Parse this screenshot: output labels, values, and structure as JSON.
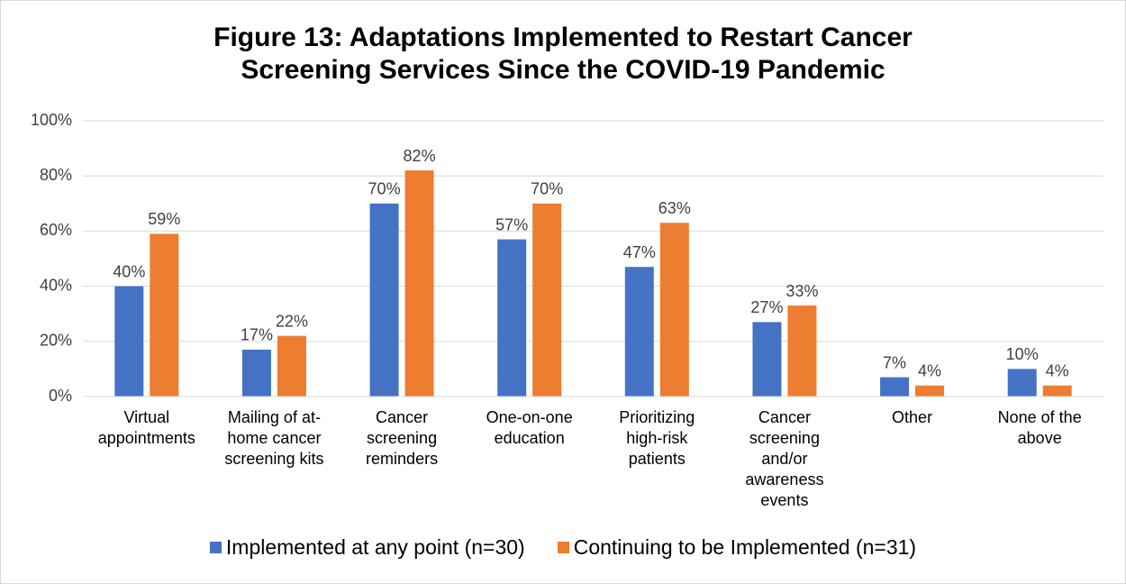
{
  "chart_data": {
    "type": "bar",
    "title": "Figure 13:  Adaptations Implemented to Restart Cancer Screening Services Since the COVID-19 Pandemic",
    "categories": [
      "Virtual appointments",
      "Mailing of at-home cancer screening kits",
      "Cancer screening reminders",
      "One-on-one education",
      "Prioritizing high-risk patients",
      "Cancer screening and/or awareness events",
      "Other",
      "None of the above"
    ],
    "series": [
      {
        "name": "Implemented at any point (n=30)",
        "color": "#4472c4",
        "values": [
          40,
          17,
          70,
          57,
          47,
          27,
          7,
          10
        ],
        "value_labels": [
          "40%",
          "17%",
          "70%",
          "57%",
          "47%",
          "27%",
          "7%",
          "10%"
        ]
      },
      {
        "name": "Continuing to be Implemented (n=31)",
        "color": "#ed7d31",
        "values": [
          59,
          22,
          82,
          70,
          63,
          33,
          4,
          4
        ],
        "value_labels": [
          "59%",
          "22%",
          "82%",
          "70%",
          "63%",
          "33%",
          "4%",
          "4%"
        ]
      }
    ],
    "ylim": [
      0,
      100
    ],
    "yticks": [
      {
        "value": 0,
        "label": "0%"
      },
      {
        "value": 20,
        "label": "20%"
      },
      {
        "value": 40,
        "label": "40%"
      },
      {
        "value": 60,
        "label": "60%"
      },
      {
        "value": 80,
        "label": "80%"
      },
      {
        "value": 100,
        "label": "100%"
      }
    ],
    "grid": true,
    "legend": "bottom"
  }
}
